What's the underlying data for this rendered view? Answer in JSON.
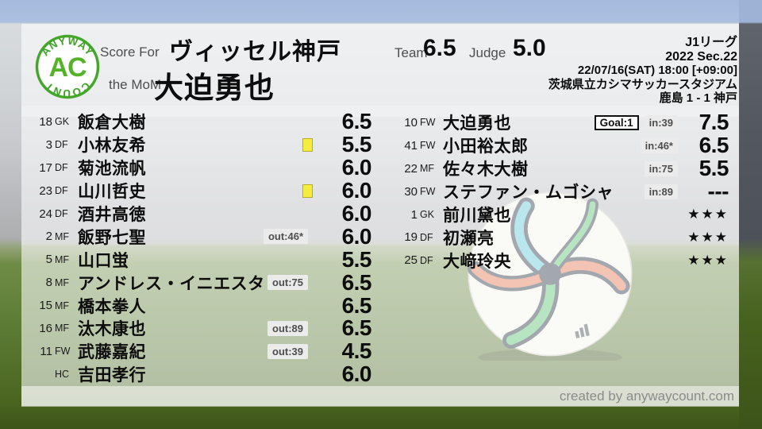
{
  "branding": {
    "logo_top": "ANYWAY",
    "logo_center": "AC",
    "logo_bottom": "COUNT",
    "created_by": "created by anywaycount.com"
  },
  "header": {
    "score_for_label": "Score For",
    "team_name": "ヴィッセル神戸",
    "mom_label": "the MoM",
    "mom_name": "大迫勇也",
    "team_label": "Team",
    "team_score": "6.5",
    "judge_label": "Judge",
    "judge_score": "5.0"
  },
  "match": {
    "league": "J1リーグ",
    "season": "2022 Sec.22",
    "datetime": "22/07/16(SAT) 18:00 [+09:00]",
    "venue": "茨城県立カシマサッカースタジアム",
    "result": "鹿島 1 - 1 神戸"
  },
  "starters": [
    {
      "num": "18",
      "pos": "GK",
      "name": "飯倉大樹",
      "score": "6.5"
    },
    {
      "num": "3",
      "pos": "DF",
      "name": "小林友希",
      "yellow": true,
      "score": "5.5"
    },
    {
      "num": "17",
      "pos": "DF",
      "name": "菊池流帆",
      "score": "6.0"
    },
    {
      "num": "23",
      "pos": "DF",
      "name": "山川哲史",
      "yellow": true,
      "score": "6.0"
    },
    {
      "num": "24",
      "pos": "DF",
      "name": "酒井高徳",
      "score": "6.0"
    },
    {
      "num": "2",
      "pos": "MF",
      "name": "飯野七聖",
      "badge": "out:46*",
      "score": "6.0"
    },
    {
      "num": "5",
      "pos": "MF",
      "name": "山口蛍",
      "score": "5.5"
    },
    {
      "num": "8",
      "pos": "MF",
      "name": "アンドレス・イニエスタ",
      "badge": "out:75",
      "score": "6.5"
    },
    {
      "num": "15",
      "pos": "MF",
      "name": "橋本拳人",
      "score": "6.5"
    },
    {
      "num": "16",
      "pos": "MF",
      "name": "汰木康也",
      "badge": "out:89",
      "score": "6.5"
    },
    {
      "num": "11",
      "pos": "FW",
      "name": "武藤嘉紀",
      "badge": "out:39",
      "score": "4.5"
    },
    {
      "num": "",
      "pos": "HC",
      "name": "吉田孝行",
      "score": "6.0"
    }
  ],
  "subs": [
    {
      "num": "10",
      "pos": "FW",
      "name": "大迫勇也",
      "goal": "Goal:1",
      "badge": "in:39",
      "score": "7.5"
    },
    {
      "num": "41",
      "pos": "FW",
      "name": "小田裕太郎",
      "badge": "in:46*",
      "score": "6.5"
    },
    {
      "num": "22",
      "pos": "MF",
      "name": "佐々木大樹",
      "badge": "in:75",
      "score": "5.5"
    },
    {
      "num": "30",
      "pos": "FW",
      "name": "ステファン・ムゴシャ",
      "badge": "in:89",
      "score": "---"
    },
    {
      "num": "1",
      "pos": "GK",
      "name": "前川黛也",
      "score": "★★★"
    },
    {
      "num": "19",
      "pos": "DF",
      "name": "初瀬亮",
      "score": "★★★"
    },
    {
      "num": "25",
      "pos": "DF",
      "name": "大﨑玲央",
      "score": "★★★"
    }
  ],
  "colors": {
    "accent_green": "#44a62b",
    "yellow_card": "#f4ec3e",
    "badge_bg": "#ebebeb",
    "badge_text": "#4e4e4e"
  }
}
